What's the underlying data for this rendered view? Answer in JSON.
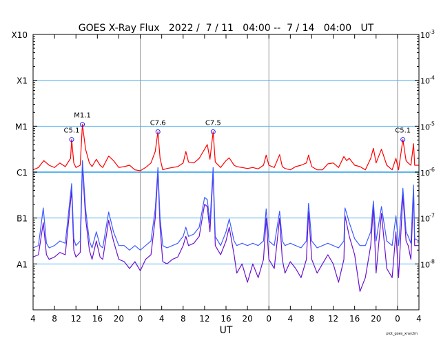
{
  "chart_data": {
    "type": "line",
    "title": "GOES X-Ray Flux   2022 /  7 / 11   04:00 --  7 / 14   04:00   UT",
    "xlabel": "UT",
    "footer": "plot_goes_xray2m",
    "x_unit": "hours since 2022-07-11 04:00",
    "xlim": [
      0,
      72
    ],
    "ylim_log10": [
      -9,
      -3
    ],
    "x_tick_labels": [
      "4",
      "8",
      "12",
      "16",
      "20",
      "0",
      "4",
      "8",
      "12",
      "16",
      "20",
      "0",
      "4",
      "8",
      "12",
      "16",
      "20",
      "0",
      "4"
    ],
    "day_boundaries": [
      20,
      44,
      68
    ],
    "left_axis_labels": [
      {
        "label": "X10",
        "log10": -3
      },
      {
        "label": "X1",
        "log10": -4
      },
      {
        "label": "M1",
        "log10": -5
      },
      {
        "label": "C1",
        "log10": -6
      },
      {
        "label": "B1",
        "log10": -7
      },
      {
        "label": "A1",
        "log10": -8
      }
    ],
    "right_axis_labels": [
      {
        "base": "10",
        "exp": "-3",
        "log10": -3
      },
      {
        "base": "10",
        "exp": "-4",
        "log10": -4
      },
      {
        "base": "10",
        "exp": "-5",
        "log10": -5
      },
      {
        "base": "10",
        "exp": "-6",
        "log10": -6
      },
      {
        "base": "10",
        "exp": "-7",
        "log10": -7
      },
      {
        "base": "10",
        "exp": "-8",
        "log10": -8
      }
    ],
    "grid_levels": [
      -4,
      -5,
      -6,
      -7,
      -8
    ],
    "colors": {
      "long": "#ff0000",
      "short": "#3b5cff",
      "short2": "#6a10d0",
      "grid": "#5ab4f0",
      "day": "#999999",
      "flare_marker": "#2020ff"
    },
    "series": [
      {
        "name": "short2",
        "points": [
          [
            0,
            -7.85
          ],
          [
            1,
            -7.8
          ],
          [
            1.9,
            -7.1
          ],
          [
            2.5,
            -7.8
          ],
          [
            3,
            -7.9
          ],
          [
            4,
            -7.85
          ],
          [
            5,
            -7.75
          ],
          [
            6,
            -7.8
          ],
          [
            7.2,
            -6.4
          ],
          [
            7.6,
            -7.7
          ],
          [
            8,
            -7.85
          ],
          [
            8.8,
            -7.75
          ],
          [
            9.2,
            -5.85
          ],
          [
            9.8,
            -7.0
          ],
          [
            10.5,
            -7.7
          ],
          [
            11,
            -7.9
          ],
          [
            11.8,
            -7.5
          ],
          [
            12.5,
            -7.85
          ],
          [
            13,
            -7.9
          ],
          [
            14.1,
            -7.05
          ],
          [
            15,
            -7.5
          ],
          [
            16,
            -7.9
          ],
          [
            17,
            -7.95
          ],
          [
            18,
            -8.1
          ],
          [
            19,
            -7.95
          ],
          [
            20,
            -8.15
          ],
          [
            21,
            -7.9
          ],
          [
            22,
            -7.8
          ],
          [
            22.8,
            -7.0
          ],
          [
            23.3,
            -6.0
          ],
          [
            23.7,
            -7.2
          ],
          [
            24.2,
            -7.95
          ],
          [
            25,
            -8.0
          ],
          [
            26,
            -7.9
          ],
          [
            27,
            -7.85
          ],
          [
            28,
            -7.6
          ],
          [
            28.5,
            -7.4
          ],
          [
            29,
            -7.6
          ],
          [
            30,
            -7.55
          ],
          [
            31,
            -7.4
          ],
          [
            32,
            -6.7
          ],
          [
            32.5,
            -6.75
          ],
          [
            33,
            -7.3
          ],
          [
            33.6,
            -6.0
          ],
          [
            34,
            -7.6
          ],
          [
            35,
            -7.8
          ],
          [
            36,
            -7.5
          ],
          [
            36.6,
            -7.2
          ],
          [
            37.5,
            -7.8
          ],
          [
            38,
            -8.2
          ],
          [
            39,
            -8.0
          ],
          [
            40,
            -8.4
          ],
          [
            41,
            -8.0
          ],
          [
            42,
            -8.3
          ],
          [
            43,
            -7.9
          ],
          [
            43.5,
            -7.0
          ],
          [
            44,
            -7.9
          ],
          [
            45,
            -8.1
          ],
          [
            46,
            -7.0
          ],
          [
            46.5,
            -7.9
          ],
          [
            47,
            -8.2
          ],
          [
            48,
            -7.95
          ],
          [
            49,
            -8.1
          ],
          [
            50,
            -8.3
          ],
          [
            51,
            -7.9
          ],
          [
            51.4,
            -6.85
          ],
          [
            52,
            -7.9
          ],
          [
            53,
            -8.2
          ],
          [
            54,
            -8.0
          ],
          [
            55,
            -7.8
          ],
          [
            56,
            -8.0
          ],
          [
            57,
            -8.4
          ],
          [
            58,
            -7.9
          ],
          [
            58.2,
            -6.95
          ],
          [
            59,
            -7.4
          ],
          [
            60,
            -7.8
          ],
          [
            61,
            -8.6
          ],
          [
            62,
            -8.3
          ],
          [
            63,
            -7.6
          ],
          [
            63.5,
            -6.75
          ],
          [
            64,
            -8.2
          ],
          [
            65,
            -6.9
          ],
          [
            66,
            -8.1
          ],
          [
            67,
            -8.3
          ],
          [
            67.7,
            -7.3
          ],
          [
            68.2,
            -8.3
          ],
          [
            69,
            -6.5
          ],
          [
            69.6,
            -7.5
          ],
          [
            70,
            -7.6
          ],
          [
            70.5,
            -7.9
          ],
          [
            71,
            -6.4
          ],
          [
            71.2,
            -7.6
          ],
          [
            72,
            -7.6
          ]
        ]
      },
      {
        "name": "short",
        "points": [
          [
            0,
            -7.65
          ],
          [
            1,
            -7.6
          ],
          [
            1.9,
            -6.78
          ],
          [
            2.5,
            -7.55
          ],
          [
            3,
            -7.65
          ],
          [
            4,
            -7.6
          ],
          [
            5,
            -7.5
          ],
          [
            6,
            -7.55
          ],
          [
            7.2,
            -6.25
          ],
          [
            7.6,
            -7.45
          ],
          [
            8,
            -7.6
          ],
          [
            8.8,
            -7.5
          ],
          [
            9.2,
            -5.75
          ],
          [
            9.8,
            -6.8
          ],
          [
            10.5,
            -7.5
          ],
          [
            11,
            -7.65
          ],
          [
            11.8,
            -7.3
          ],
          [
            12.5,
            -7.6
          ],
          [
            13,
            -7.65
          ],
          [
            14.1,
            -6.87
          ],
          [
            15,
            -7.3
          ],
          [
            16,
            -7.6
          ],
          [
            17,
            -7.6
          ],
          [
            18,
            -7.7
          ],
          [
            19,
            -7.6
          ],
          [
            20,
            -7.7
          ],
          [
            21,
            -7.6
          ],
          [
            22,
            -7.5
          ],
          [
            22.8,
            -6.8
          ],
          [
            23.3,
            -5.9
          ],
          [
            23.7,
            -7.0
          ],
          [
            24.2,
            -7.6
          ],
          [
            25,
            -7.65
          ],
          [
            26,
            -7.6
          ],
          [
            27,
            -7.55
          ],
          [
            28,
            -7.4
          ],
          [
            28.5,
            -7.2
          ],
          [
            29,
            -7.4
          ],
          [
            30,
            -7.35
          ],
          [
            31,
            -7.2
          ],
          [
            32,
            -6.55
          ],
          [
            32.5,
            -6.6
          ],
          [
            33,
            -7.1
          ],
          [
            33.6,
            -5.9
          ],
          [
            34,
            -7.4
          ],
          [
            35,
            -7.6
          ],
          [
            36,
            -7.3
          ],
          [
            36.6,
            -7.02
          ],
          [
            37.5,
            -7.5
          ],
          [
            38,
            -7.6
          ],
          [
            39,
            -7.55
          ],
          [
            40,
            -7.6
          ],
          [
            41,
            -7.55
          ],
          [
            42,
            -7.6
          ],
          [
            43,
            -7.5
          ],
          [
            43.5,
            -6.8
          ],
          [
            44,
            -7.5
          ],
          [
            45,
            -7.6
          ],
          [
            46,
            -6.85
          ],
          [
            46.5,
            -7.5
          ],
          [
            47,
            -7.6
          ],
          [
            48,
            -7.55
          ],
          [
            49,
            -7.6
          ],
          [
            50,
            -7.65
          ],
          [
            51,
            -7.5
          ],
          [
            51.4,
            -6.68
          ],
          [
            52,
            -7.5
          ],
          [
            53,
            -7.65
          ],
          [
            54,
            -7.6
          ],
          [
            55,
            -7.55
          ],
          [
            56,
            -7.6
          ],
          [
            57,
            -7.65
          ],
          [
            58,
            -7.5
          ],
          [
            58.2,
            -6.78
          ],
          [
            59,
            -7.1
          ],
          [
            60,
            -7.45
          ],
          [
            61,
            -7.6
          ],
          [
            62,
            -7.6
          ],
          [
            63,
            -7.3
          ],
          [
            63.5,
            -6.63
          ],
          [
            64,
            -7.5
          ],
          [
            65,
            -6.75
          ],
          [
            66,
            -7.5
          ],
          [
            67,
            -7.6
          ],
          [
            67.7,
            -6.95
          ],
          [
            68.2,
            -7.6
          ],
          [
            69,
            -6.35
          ],
          [
            69.6,
            -7.3
          ],
          [
            70,
            -7.4
          ],
          [
            70.5,
            -7.55
          ],
          [
            71,
            -6.28
          ],
          [
            71.2,
            -7.45
          ],
          [
            72,
            -7.5
          ]
        ]
      },
      {
        "name": "long",
        "points": [
          [
            0,
            -5.95
          ],
          [
            1,
            -5.9
          ],
          [
            2,
            -5.75
          ],
          [
            3,
            -5.85
          ],
          [
            4,
            -5.9
          ],
          [
            5,
            -5.8
          ],
          [
            6,
            -5.88
          ],
          [
            7,
            -5.7
          ],
          [
            7.2,
            -5.29
          ],
          [
            7.6,
            -5.8
          ],
          [
            8,
            -5.9
          ],
          [
            8.8,
            -5.85
          ],
          [
            9.2,
            -4.96
          ],
          [
            9.8,
            -5.5
          ],
          [
            10.5,
            -5.8
          ],
          [
            11,
            -5.88
          ],
          [
            11.8,
            -5.72
          ],
          [
            12.5,
            -5.85
          ],
          [
            13,
            -5.9
          ],
          [
            14.1,
            -5.65
          ],
          [
            15,
            -5.75
          ],
          [
            16,
            -5.9
          ],
          [
            17,
            -5.88
          ],
          [
            18,
            -5.85
          ],
          [
            19,
            -5.95
          ],
          [
            20,
            -5.97
          ],
          [
            21,
            -5.9
          ],
          [
            22,
            -5.8
          ],
          [
            22.8,
            -5.55
          ],
          [
            23.3,
            -5.12
          ],
          [
            23.7,
            -5.7
          ],
          [
            24.2,
            -5.95
          ],
          [
            25,
            -5.92
          ],
          [
            26,
            -5.9
          ],
          [
            27,
            -5.88
          ],
          [
            28,
            -5.8
          ],
          [
            28.5,
            -5.55
          ],
          [
            29,
            -5.78
          ],
          [
            30,
            -5.8
          ],
          [
            31,
            -5.7
          ],
          [
            32,
            -5.5
          ],
          [
            32.5,
            -5.4
          ],
          [
            33,
            -5.72
          ],
          [
            33.6,
            -5.12
          ],
          [
            34,
            -5.78
          ],
          [
            35,
            -5.9
          ],
          [
            36,
            -5.75
          ],
          [
            36.6,
            -5.69
          ],
          [
            37.5,
            -5.85
          ],
          [
            38,
            -5.88
          ],
          [
            39,
            -5.9
          ],
          [
            40,
            -5.92
          ],
          [
            41,
            -5.9
          ],
          [
            42,
            -5.93
          ],
          [
            43,
            -5.85
          ],
          [
            43.5,
            -5.63
          ],
          [
            44,
            -5.85
          ],
          [
            45,
            -5.9
          ],
          [
            46,
            -5.62
          ],
          [
            46.5,
            -5.88
          ],
          [
            47,
            -5.92
          ],
          [
            48,
            -5.95
          ],
          [
            49,
            -5.88
          ],
          [
            50,
            -5.85
          ],
          [
            51,
            -5.8
          ],
          [
            51.4,
            -5.63
          ],
          [
            52,
            -5.88
          ],
          [
            53,
            -5.95
          ],
          [
            54,
            -5.95
          ],
          [
            55,
            -5.82
          ],
          [
            56,
            -5.8
          ],
          [
            57,
            -5.9
          ],
          [
            58,
            -5.66
          ],
          [
            58.5,
            -5.75
          ],
          [
            59,
            -5.7
          ],
          [
            60,
            -5.85
          ],
          [
            61,
            -5.88
          ],
          [
            62,
            -5.95
          ],
          [
            63,
            -5.7
          ],
          [
            63.5,
            -5.48
          ],
          [
            64,
            -5.8
          ],
          [
            65,
            -5.5
          ],
          [
            66,
            -5.85
          ],
          [
            67,
            -5.95
          ],
          [
            67.7,
            -5.7
          ],
          [
            68.2,
            -5.95
          ],
          [
            69,
            -5.29
          ],
          [
            69.6,
            -5.75
          ],
          [
            70,
            -5.8
          ],
          [
            70.5,
            -5.85
          ],
          [
            71,
            -5.38
          ],
          [
            71.2,
            -5.85
          ],
          [
            72,
            -5.85
          ]
        ]
      }
    ],
    "flares": [
      {
        "label": "C5.1",
        "hour": 7.2,
        "log10": -5.29
      },
      {
        "label": "M1.1",
        "hour": 9.2,
        "log10": -4.96
      },
      {
        "label": "C7.6",
        "hour": 23.3,
        "log10": -5.12
      },
      {
        "label": "C7.5",
        "hour": 33.6,
        "log10": -5.12
      },
      {
        "label": "C5.1",
        "hour": 69.0,
        "log10": -5.29
      }
    ]
  }
}
